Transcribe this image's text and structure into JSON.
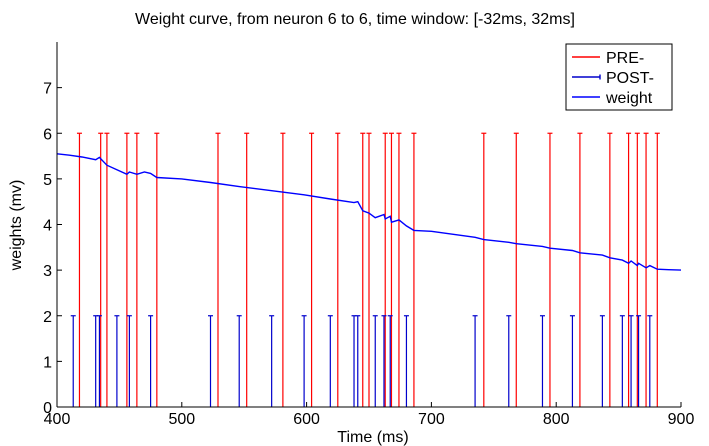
{
  "chart_data": {
    "type": "line",
    "title": "Weight curve, from neuron 6 to 6, time window: [-32ms, 32ms]",
    "xlabel": "Time (ms)",
    "ylabel": "weights (mv)",
    "xlim": [
      400,
      900
    ],
    "ylim": [
      0,
      8
    ],
    "xticks": [
      400,
      500,
      600,
      700,
      800,
      900
    ],
    "yticks": [
      0,
      1,
      2,
      3,
      4,
      5,
      6,
      7
    ],
    "grid": false,
    "legend": "top-right",
    "series": [
      {
        "name": "PRE-",
        "kind": "spike",
        "color": "#ff0000",
        "height": 6,
        "x": [
          418,
          435,
          440,
          456,
          464,
          480,
          529,
          552,
          581,
          604,
          625,
          645,
          650,
          663,
          668,
          674,
          686,
          742,
          768,
          795,
          819,
          843,
          858,
          865,
          872,
          881
        ]
      },
      {
        "name": "POST-",
        "kind": "spike",
        "color": "#0000cc",
        "height": 2,
        "x": [
          413,
          431,
          434,
          448,
          458,
          475,
          523,
          546,
          572,
          598,
          619,
          638,
          641,
          655,
          662,
          667,
          680,
          735,
          762,
          789,
          813,
          837,
          853,
          860,
          866,
          875
        ]
      },
      {
        "name": "weight",
        "kind": "line",
        "color": "#0000ff",
        "x": [
          400,
          410,
          420,
          431,
          434,
          440,
          448,
          456,
          458,
          464,
          470,
          475,
          480,
          500,
          523,
          546,
          572,
          598,
          619,
          638,
          641,
          645,
          650,
          655,
          662,
          663,
          667,
          668,
          674,
          680,
          686,
          700,
          735,
          742,
          762,
          768,
          789,
          795,
          813,
          819,
          837,
          843,
          853,
          858,
          860,
          865,
          866,
          872,
          875,
          881,
          890,
          900
        ],
        "y": [
          5.55,
          5.52,
          5.48,
          5.42,
          5.47,
          5.3,
          5.2,
          5.1,
          5.15,
          5.1,
          5.15,
          5.12,
          5.03,
          5.0,
          4.92,
          4.83,
          4.74,
          4.65,
          4.56,
          4.48,
          4.5,
          4.3,
          4.25,
          4.15,
          4.22,
          4.12,
          4.18,
          4.05,
          4.1,
          3.97,
          3.87,
          3.85,
          3.72,
          3.67,
          3.61,
          3.58,
          3.52,
          3.48,
          3.43,
          3.38,
          3.33,
          3.27,
          3.22,
          3.15,
          3.2,
          3.1,
          3.15,
          3.05,
          3.1,
          3.02,
          3.01,
          3.0
        ]
      }
    ]
  }
}
